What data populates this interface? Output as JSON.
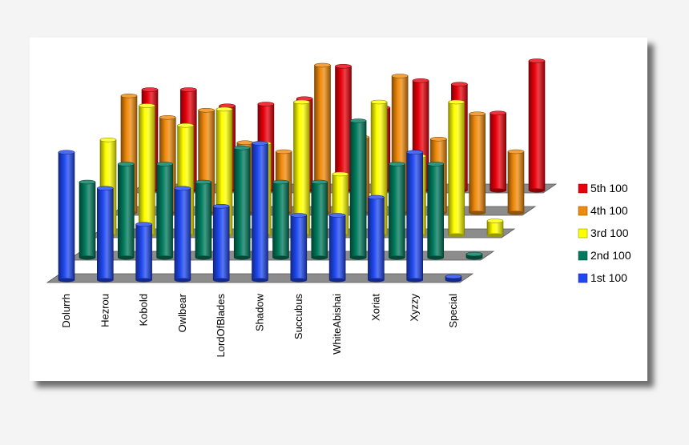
{
  "chart_data": {
    "type": "bar",
    "style": "3d-cylinder-depth",
    "title": "",
    "xlabel": "",
    "ylabel": "",
    "ylim": [
      0,
      100
    ],
    "grid": false,
    "legend_position": "right",
    "categories": [
      "Dolurrh",
      "Hezrou",
      "Kobold",
      "Owlbear",
      "LordOfBlades",
      "Shadow",
      "Succubus",
      "WhiteAbishai",
      "Xoriat",
      "Xyzzy",
      "Special"
    ],
    "series": [
      {
        "name": "5th 100",
        "color": "#e8000b",
        "values": [
          56,
          56,
          47,
          48,
          51,
          69,
          46,
          61,
          59,
          43,
          72
        ]
      },
      {
        "name": "4th 100",
        "color": "#f08a0b",
        "values": [
          65,
          53,
          57,
          39,
          34,
          82,
          42,
          76,
          41,
          55,
          34
        ]
      },
      {
        "name": "3rd 100",
        "color": "#ffff00",
        "values": [
          53,
          72,
          61,
          70,
          51,
          74,
          34,
          74,
          44,
          74,
          8
        ]
      },
      {
        "name": "2nd 100",
        "color": "#007a5c",
        "values": [
          42,
          52,
          52,
          42,
          61,
          42,
          42,
          76,
          52,
          52,
          2
        ]
      },
      {
        "name": "1st 100",
        "color": "#1f48f0",
        "values": [
          71,
          51,
          31,
          51,
          41,
          76,
          36,
          36,
          46,
          71,
          2
        ]
      }
    ]
  }
}
